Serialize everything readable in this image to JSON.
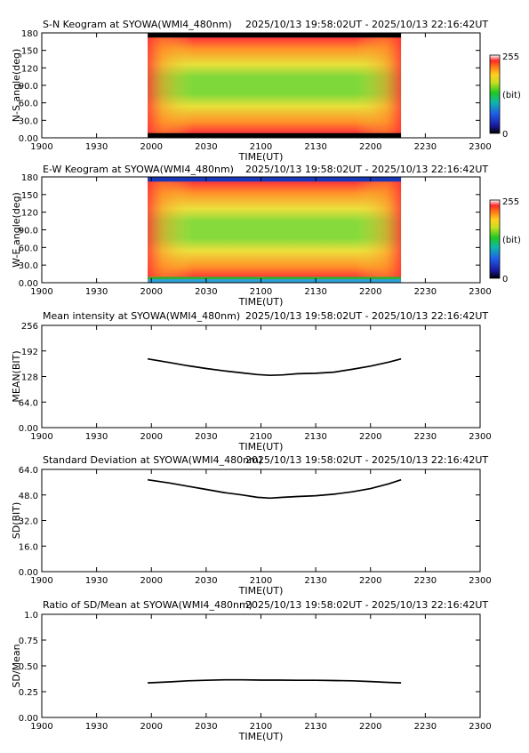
{
  "time_range": "2025/10/13 19:58:02UT - 2025/10/13 22:16:42UT",
  "x_axis": {
    "label": "TIME(UT)",
    "tick_labels": [
      "1900",
      "1930",
      "2000",
      "2030",
      "2100",
      "2130",
      "2200",
      "2230",
      "2300"
    ],
    "ticks_minutes": [
      0,
      30,
      60,
      90,
      120,
      150,
      180,
      210,
      240
    ],
    "range_minutes": [
      0,
      240
    ],
    "data_start_minutes": 58,
    "data_end_minutes": 196.7
  },
  "chart_data": [
    {
      "type": "heatmap",
      "title": "S-N Keogram at SYOWA(WMI4_480nm)",
      "ylabel": "N-S angle(deg)",
      "ylim": [
        0,
        180
      ],
      "ytick_labels": [
        "0.00",
        "30.0",
        "60.0",
        "90.0",
        "120",
        "150",
        "180"
      ],
      "yticks": [
        0,
        30,
        60,
        90,
        120,
        150,
        180
      ],
      "xlabel": "TIME(UT)",
      "colorbar": {
        "labels": [
          "255",
          "(bit)",
          "0"
        ],
        "range": [
          0,
          255
        ]
      },
      "bands": [
        {
          "from": 0,
          "to": 8,
          "color": "#000000"
        },
        {
          "from": 172,
          "to": 180,
          "color": "#000000"
        }
      ],
      "colors": {
        "center": "#7ed83a",
        "mid": "#e8e03a",
        "outer": "#ff9028",
        "edge": "#ff3838",
        "fringe": "#ffd0d0"
      }
    },
    {
      "type": "heatmap",
      "title": "E-W Keogram at SYOWA(WMI4_480nm)",
      "ylabel": "W-E angle(deg)",
      "ylim": [
        0,
        180
      ],
      "ytick_labels": [
        "0.00",
        "30.0",
        "60.0",
        "90.0",
        "120",
        "150",
        "180"
      ],
      "yticks": [
        0,
        30,
        60,
        90,
        120,
        150,
        180
      ],
      "xlabel": "TIME(UT)",
      "colorbar": {
        "labels": [
          "255",
          "(bit)",
          "0"
        ],
        "range": [
          0,
          255
        ]
      },
      "bands": [
        {
          "from": 0,
          "to": 6,
          "color": "#2ca0d8"
        },
        {
          "from": 6,
          "to": 10,
          "color": "#30b030"
        },
        {
          "from": 172,
          "to": 180,
          "color": "#1838b8"
        }
      ],
      "colors": {
        "center": "#86da3c",
        "mid": "#ece03c",
        "outer": "#ff9028",
        "edge": "#ff3838",
        "fringe": "#ffe0e0"
      }
    },
    {
      "type": "line",
      "title": "Mean intensity at SYOWA(WMI4_480nm)",
      "ylabel": "MEAN(BIT)",
      "ylim": [
        0,
        256
      ],
      "ytick_labels": [
        "0.00",
        "64.0",
        "128",
        "192",
        "256"
      ],
      "yticks": [
        0,
        64,
        128,
        192,
        256
      ],
      "xlabel": "TIME(UT)",
      "series": [
        {
          "x": [
            58,
            70,
            80,
            90,
            100,
            110,
            118,
            125,
            132,
            140,
            150,
            160,
            170,
            180,
            190,
            196.7
          ],
          "y": [
            172,
            163,
            155,
            148,
            142,
            137,
            133,
            131,
            132,
            135,
            136,
            139,
            146,
            154,
            164,
            172
          ]
        }
      ]
    },
    {
      "type": "line",
      "title": "Standard Deviation at SYOWA(WMI4_480nm)",
      "ylabel": "SD(BIT)",
      "ylim": [
        0,
        64
      ],
      "ytick_labels": [
        "0.00",
        "16.0",
        "32.0",
        "48.0",
        "64.0"
      ],
      "yticks": [
        0,
        16,
        32,
        48,
        64
      ],
      "xlabel": "TIME(UT)",
      "series": [
        {
          "x": [
            58,
            70,
            80,
            90,
            100,
            110,
            118,
            125,
            132,
            140,
            150,
            160,
            170,
            180,
            190,
            196.7
          ],
          "y": [
            57.5,
            55.5,
            53.5,
            51.5,
            49.5,
            48,
            46.5,
            46,
            46.5,
            47,
            47.5,
            48.5,
            50,
            52,
            55,
            57.5
          ]
        }
      ]
    },
    {
      "type": "line",
      "title": "Ratio of SD/Mean at SYOWA(WMI4_480nm)",
      "ylabel": "SD/Mean",
      "ylim": [
        0,
        1
      ],
      "ytick_labels": [
        "0.00",
        "0.25",
        "0.50",
        "0.75",
        "1.0"
      ],
      "yticks": [
        0,
        0.25,
        0.5,
        0.75,
        1.0
      ],
      "xlabel": "TIME(UT)",
      "series": [
        {
          "x": [
            58,
            70,
            80,
            90,
            100,
            110,
            120,
            130,
            140,
            150,
            160,
            170,
            180,
            190,
            196.7
          ],
          "y": [
            0.335,
            0.345,
            0.355,
            0.36,
            0.365,
            0.365,
            0.362,
            0.362,
            0.36,
            0.36,
            0.358,
            0.355,
            0.348,
            0.34,
            0.335
          ]
        }
      ]
    }
  ]
}
